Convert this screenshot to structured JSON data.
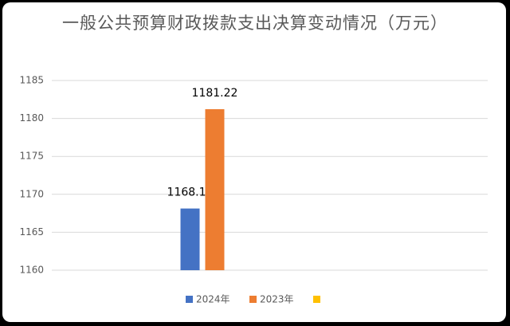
{
  "chart_data": {
    "type": "bar",
    "title": "一般公共预算财政拨款支出决算变动情况（万元）",
    "categories": [
      null
    ],
    "series": [
      {
        "name": "2024年",
        "color": "#4472c4",
        "values": [
          1168.13
        ]
      },
      {
        "name": "2023年",
        "color": "#ed7d31",
        "values": [
          1181.22
        ]
      },
      {
        "name": null,
        "color": "#ffc000",
        "values": [
          null
        ]
      }
    ],
    "ylim": [
      1160,
      1185
    ],
    "yticks": [
      1160,
      1165,
      1170,
      1175,
      1180,
      1185
    ],
    "grid": true
  }
}
